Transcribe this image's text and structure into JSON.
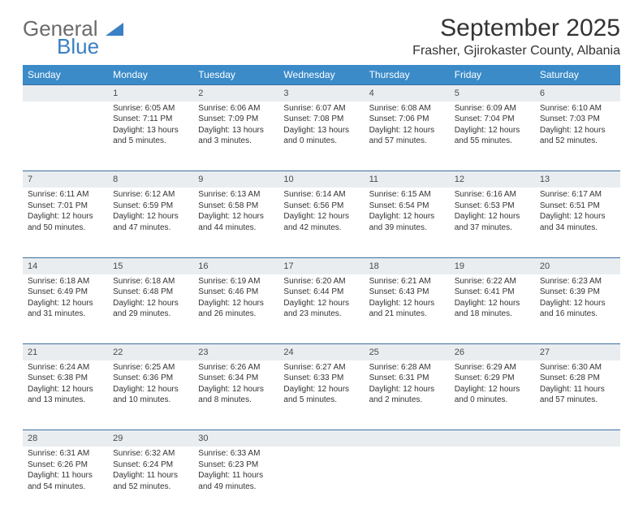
{
  "logo": {
    "line1": "General",
    "line2": "Blue"
  },
  "title": "September 2025",
  "location": "Frasher, Gjirokaster County, Albania",
  "colors": {
    "header_bg": "#3b8bc9",
    "header_text": "#ffffff",
    "daynum_bg": "#e9edf0",
    "row_border": "#3b6fa0",
    "logo_gray": "#6b6b6b",
    "logo_blue": "#3b7fc4"
  },
  "weekdays": [
    "Sunday",
    "Monday",
    "Tuesday",
    "Wednesday",
    "Thursday",
    "Friday",
    "Saturday"
  ],
  "weeks": [
    [
      {
        "n": "",
        "sr": "",
        "ss": "",
        "dl": ""
      },
      {
        "n": "1",
        "sr": "6:05 AM",
        "ss": "7:11 PM",
        "dl": "13 hours and 5 minutes."
      },
      {
        "n": "2",
        "sr": "6:06 AM",
        "ss": "7:09 PM",
        "dl": "13 hours and 3 minutes."
      },
      {
        "n": "3",
        "sr": "6:07 AM",
        "ss": "7:08 PM",
        "dl": "13 hours and 0 minutes."
      },
      {
        "n": "4",
        "sr": "6:08 AM",
        "ss": "7:06 PM",
        "dl": "12 hours and 57 minutes."
      },
      {
        "n": "5",
        "sr": "6:09 AM",
        "ss": "7:04 PM",
        "dl": "12 hours and 55 minutes."
      },
      {
        "n": "6",
        "sr": "6:10 AM",
        "ss": "7:03 PM",
        "dl": "12 hours and 52 minutes."
      }
    ],
    [
      {
        "n": "7",
        "sr": "6:11 AM",
        "ss": "7:01 PM",
        "dl": "12 hours and 50 minutes."
      },
      {
        "n": "8",
        "sr": "6:12 AM",
        "ss": "6:59 PM",
        "dl": "12 hours and 47 minutes."
      },
      {
        "n": "9",
        "sr": "6:13 AM",
        "ss": "6:58 PM",
        "dl": "12 hours and 44 minutes."
      },
      {
        "n": "10",
        "sr": "6:14 AM",
        "ss": "6:56 PM",
        "dl": "12 hours and 42 minutes."
      },
      {
        "n": "11",
        "sr": "6:15 AM",
        "ss": "6:54 PM",
        "dl": "12 hours and 39 minutes."
      },
      {
        "n": "12",
        "sr": "6:16 AM",
        "ss": "6:53 PM",
        "dl": "12 hours and 37 minutes."
      },
      {
        "n": "13",
        "sr": "6:17 AM",
        "ss": "6:51 PM",
        "dl": "12 hours and 34 minutes."
      }
    ],
    [
      {
        "n": "14",
        "sr": "6:18 AM",
        "ss": "6:49 PM",
        "dl": "12 hours and 31 minutes."
      },
      {
        "n": "15",
        "sr": "6:18 AM",
        "ss": "6:48 PM",
        "dl": "12 hours and 29 minutes."
      },
      {
        "n": "16",
        "sr": "6:19 AM",
        "ss": "6:46 PM",
        "dl": "12 hours and 26 minutes."
      },
      {
        "n": "17",
        "sr": "6:20 AM",
        "ss": "6:44 PM",
        "dl": "12 hours and 23 minutes."
      },
      {
        "n": "18",
        "sr": "6:21 AM",
        "ss": "6:43 PM",
        "dl": "12 hours and 21 minutes."
      },
      {
        "n": "19",
        "sr": "6:22 AM",
        "ss": "6:41 PM",
        "dl": "12 hours and 18 minutes."
      },
      {
        "n": "20",
        "sr": "6:23 AM",
        "ss": "6:39 PM",
        "dl": "12 hours and 16 minutes."
      }
    ],
    [
      {
        "n": "21",
        "sr": "6:24 AM",
        "ss": "6:38 PM",
        "dl": "12 hours and 13 minutes."
      },
      {
        "n": "22",
        "sr": "6:25 AM",
        "ss": "6:36 PM",
        "dl": "12 hours and 10 minutes."
      },
      {
        "n": "23",
        "sr": "6:26 AM",
        "ss": "6:34 PM",
        "dl": "12 hours and 8 minutes."
      },
      {
        "n": "24",
        "sr": "6:27 AM",
        "ss": "6:33 PM",
        "dl": "12 hours and 5 minutes."
      },
      {
        "n": "25",
        "sr": "6:28 AM",
        "ss": "6:31 PM",
        "dl": "12 hours and 2 minutes."
      },
      {
        "n": "26",
        "sr": "6:29 AM",
        "ss": "6:29 PM",
        "dl": "12 hours and 0 minutes."
      },
      {
        "n": "27",
        "sr": "6:30 AM",
        "ss": "6:28 PM",
        "dl": "11 hours and 57 minutes."
      }
    ],
    [
      {
        "n": "28",
        "sr": "6:31 AM",
        "ss": "6:26 PM",
        "dl": "11 hours and 54 minutes."
      },
      {
        "n": "29",
        "sr": "6:32 AM",
        "ss": "6:24 PM",
        "dl": "11 hours and 52 minutes."
      },
      {
        "n": "30",
        "sr": "6:33 AM",
        "ss": "6:23 PM",
        "dl": "11 hours and 49 minutes."
      },
      {
        "n": "",
        "sr": "",
        "ss": "",
        "dl": ""
      },
      {
        "n": "",
        "sr": "",
        "ss": "",
        "dl": ""
      },
      {
        "n": "",
        "sr": "",
        "ss": "",
        "dl": ""
      },
      {
        "n": "",
        "sr": "",
        "ss": "",
        "dl": ""
      }
    ]
  ],
  "labels": {
    "sunrise": "Sunrise:",
    "sunset": "Sunset:",
    "daylight": "Daylight:"
  }
}
